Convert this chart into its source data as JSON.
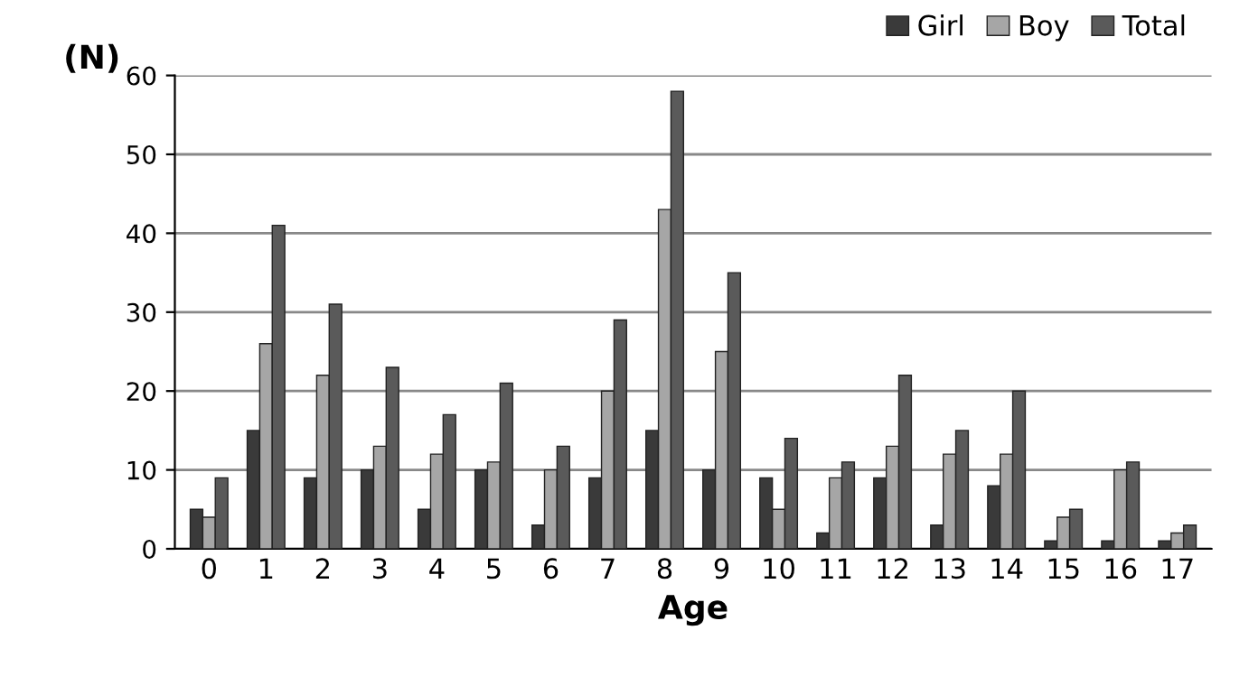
{
  "chart_data": {
    "type": "bar",
    "xlabel": "Age",
    "ylabel": "(N)",
    "categories": [
      "0",
      "1",
      "2",
      "3",
      "4",
      "5",
      "6",
      "7",
      "8",
      "9",
      "10",
      "11",
      "12",
      "13",
      "14",
      "15",
      "16",
      "17"
    ],
    "series": [
      {
        "name": "Girl",
        "color": "#3a3a3a",
        "values": [
          5,
          15,
          9,
          10,
          5,
          10,
          3,
          9,
          15,
          10,
          9,
          2,
          9,
          3,
          8,
          1,
          1,
          1
        ]
      },
      {
        "name": "Boy",
        "color": "#a6a6a6",
        "values": [
          4,
          26,
          22,
          13,
          12,
          11,
          10,
          20,
          43,
          25,
          5,
          9,
          13,
          12,
          12,
          4,
          10,
          2
        ]
      },
      {
        "name": "Total",
        "color": "#5a5a5a",
        "values": [
          9,
          41,
          31,
          23,
          17,
          21,
          13,
          29,
          58,
          35,
          14,
          11,
          22,
          15,
          20,
          5,
          11,
          3
        ]
      }
    ],
    "ylim": [
      0,
      60
    ],
    "yticks": [
      0,
      10,
      20,
      30,
      40,
      50,
      60
    ],
    "grid": "y",
    "legend": "top right"
  }
}
